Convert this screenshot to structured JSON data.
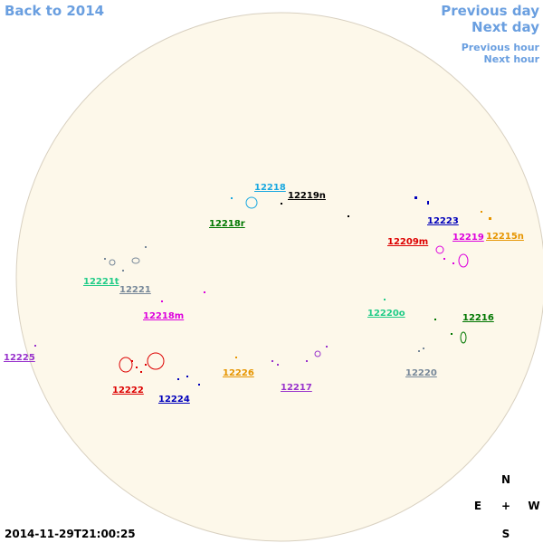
{
  "nav": {
    "back": "Back to 2014",
    "previous_day": "Previous day",
    "next_day": "Next day",
    "previous_hour": "Previous hour",
    "next_hour": "Next hour"
  },
  "regions": [
    {
      "label": "12218",
      "color": "#1aa8e0"
    },
    {
      "label": "12219n",
      "color": "#000000"
    },
    {
      "label": "12218r",
      "color": "#007700"
    },
    {
      "label": "12223",
      "color": "#0000bb"
    },
    {
      "label": "12215n",
      "color": "#e69500"
    },
    {
      "label": "12209m",
      "color": "#dd0000"
    },
    {
      "label": "12219",
      "color": "#dd00dd"
    },
    {
      "label": "12221t",
      "color": "#22cc88"
    },
    {
      "label": "12221",
      "color": "#778899"
    },
    {
      "label": "12218m",
      "color": "#dd00dd"
    },
    {
      "label": "12220o",
      "color": "#22cc88"
    },
    {
      "label": "12216",
      "color": "#007700"
    },
    {
      "label": "12225",
      "color": "#9933cc"
    },
    {
      "label": "12226",
      "color": "#e69500"
    },
    {
      "label": "12220",
      "color": "#778899"
    },
    {
      "label": "12217",
      "color": "#9933cc"
    },
    {
      "label": "12222",
      "color": "#dd0000"
    },
    {
      "label": "12224",
      "color": "#0000bb"
    }
  ],
  "compass": {
    "north": "N",
    "east": "E",
    "center": "+",
    "west": "W",
    "south": "S"
  },
  "timestamp": "2014-11-29T21:00:25"
}
